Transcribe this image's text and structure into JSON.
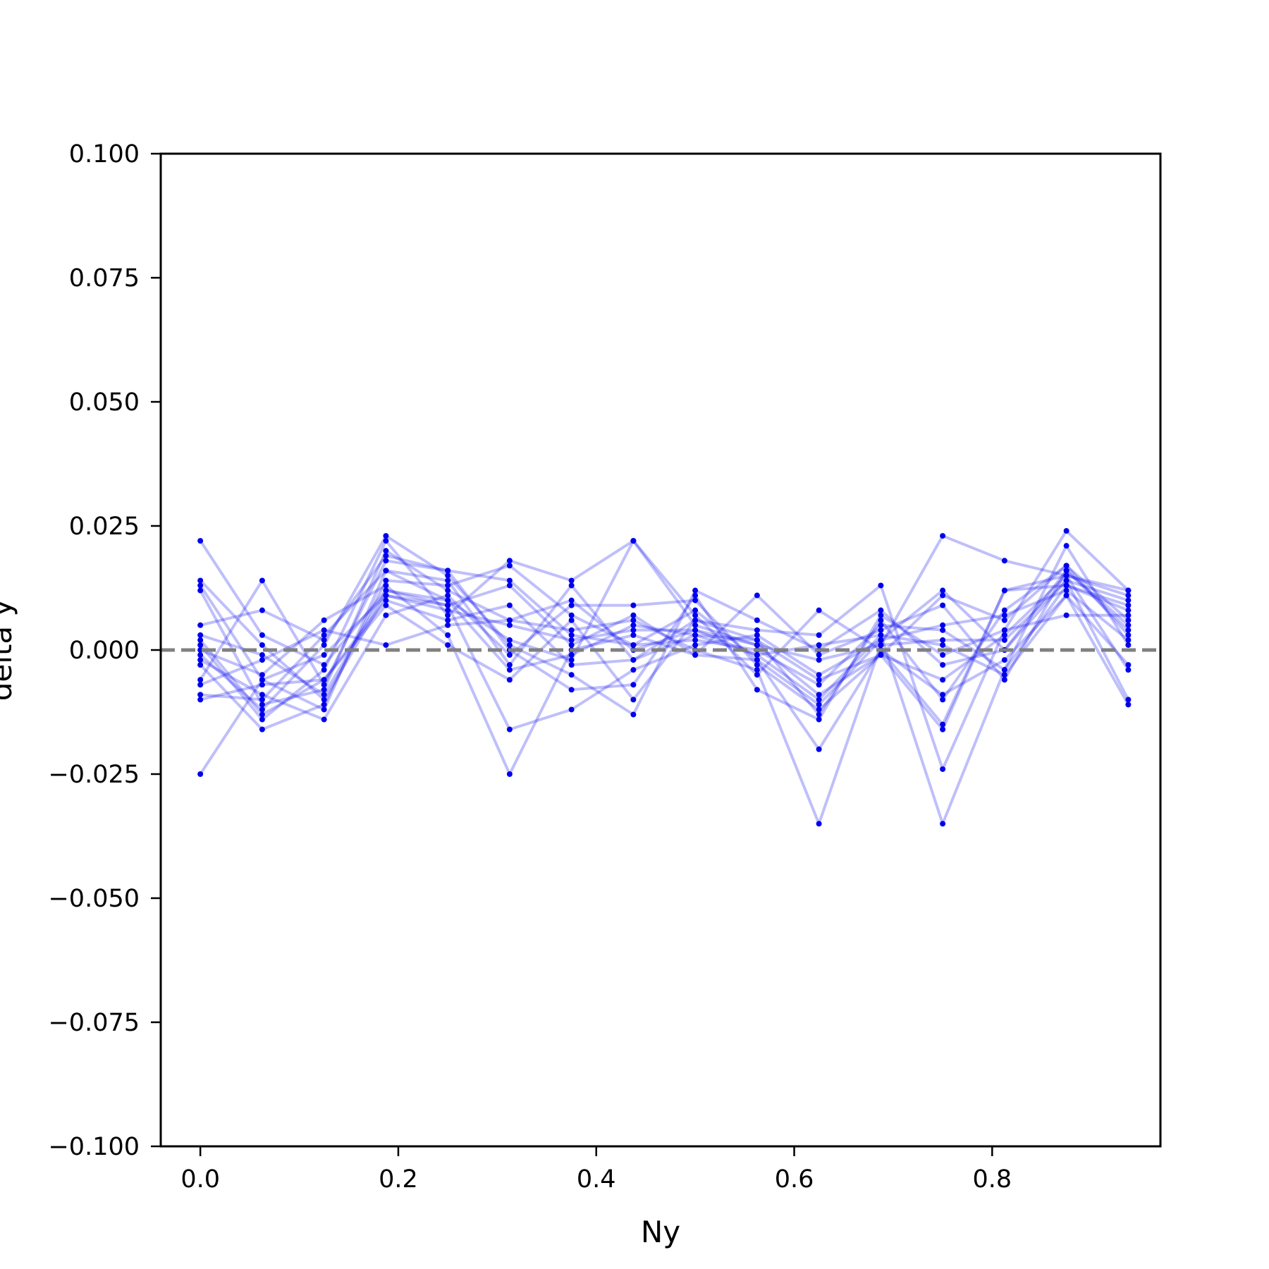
{
  "chart_data": {
    "type": "line",
    "title": "",
    "xlabel": "Ny",
    "ylabel": "delta y",
    "xlim": [
      -0.04,
      0.97
    ],
    "ylim": [
      -0.1,
      0.1
    ],
    "xticks": [
      0.0,
      0.2,
      0.4,
      0.6,
      0.8
    ],
    "xtick_labels": [
      "0.0",
      "0.2",
      "0.4",
      "0.6",
      "0.8"
    ],
    "yticks": [
      0.1,
      0.075,
      0.05,
      0.025,
      0.0,
      -0.025,
      -0.05,
      -0.075,
      -0.1
    ],
    "ytick_labels": [
      "0.100",
      "0.075",
      "0.050",
      "0.025",
      "0.000",
      "−0.025",
      "−0.050",
      "−0.075",
      "−0.100"
    ],
    "grid": false,
    "reference_line": {
      "y": 0.0,
      "style": "dashed",
      "color": "#808080"
    },
    "series_color": "#0000ee",
    "x": [
      0.0,
      0.0625,
      0.125,
      0.1875,
      0.25,
      0.3125,
      0.375,
      0.4375,
      0.5,
      0.5625,
      0.625,
      0.6875,
      0.75,
      0.8125,
      0.875,
      0.9375
    ],
    "series": [
      {
        "values": [
          0.022,
          0.003,
          -0.003,
          0.012,
          0.01,
          0.002,
          -0.002,
          0.022,
          0.005,
          0.001,
          -0.002,
          0.001,
          0.023,
          0.018,
          0.015,
          0.011
        ]
      },
      {
        "values": [
          0.014,
          0.001,
          -0.01,
          0.011,
          0.008,
          0.005,
          0.002,
          0.004,
          0.004,
          -0.001,
          -0.01,
          0.003,
          -0.035,
          -0.004,
          0.013,
          0.008
        ]
      },
      {
        "values": [
          0.013,
          -0.006,
          -0.012,
          0.016,
          0.014,
          -0.003,
          0.013,
          -0.002,
          0.003,
          0.002,
          -0.013,
          0.006,
          -0.01,
          0.008,
          0.017,
          0.006
        ]
      },
      {
        "values": [
          0.012,
          -0.011,
          -0.008,
          0.02,
          0.012,
          0.006,
          0.004,
          0.006,
          0.0,
          -0.004,
          -0.035,
          0.001,
          0.002,
          0.002,
          0.014,
          0.01
        ]
      },
      {
        "values": [
          0.005,
          0.008,
          0.002,
          0.019,
          0.016,
          0.014,
          0.003,
          0.001,
          0.008,
          -0.002,
          -0.02,
          0.0,
          -0.015,
          0.012,
          0.013,
          0.009
        ]
      },
      {
        "values": [
          0.003,
          -0.001,
          -0.009,
          0.012,
          0.009,
          -0.016,
          -0.012,
          -0.004,
          0.001,
          0.003,
          -0.005,
          0.002,
          0.012,
          0.0,
          0.016,
          0.005
        ]
      },
      {
        "values": [
          0.002,
          -0.013,
          -0.006,
          0.01,
          0.006,
          0.009,
          -0.003,
          -0.002,
          0.006,
          0.004,
          0.003,
          0.013,
          -0.024,
          0.004,
          0.024,
          0.012
        ]
      },
      {
        "values": [
          0.001,
          -0.014,
          -0.004,
          0.022,
          0.007,
          0.018,
          0.014,
          0.022,
          0.007,
          -0.005,
          0.008,
          0.0,
          -0.009,
          -0.002,
          0.011,
          -0.003
        ]
      },
      {
        "values": [
          0.0,
          -0.005,
          0.006,
          0.013,
          0.003,
          -0.025,
          0.0,
          0.003,
          -0.001,
          0.011,
          -0.001,
          0.004,
          0.009,
          -0.006,
          0.016,
          0.004
        ]
      },
      {
        "values": [
          -0.001,
          -0.012,
          0.001,
          0.023,
          0.015,
          0.001,
          -0.005,
          -0.013,
          0.012,
          0.006,
          0.0,
          0.008,
          -0.003,
          0.0,
          0.014,
          -0.01
        ]
      },
      {
        "values": [
          -0.002,
          -0.009,
          -0.014,
          0.007,
          0.011,
          -0.001,
          0.009,
          0.009,
          0.01,
          -0.003,
          -0.012,
          -0.001,
          0.011,
          0.006,
          0.017,
          0.003
        ]
      },
      {
        "values": [
          -0.003,
          -0.016,
          -0.011,
          0.014,
          0.013,
          0.017,
          0.007,
          0.001,
          0.002,
          0.0,
          -0.007,
          0.005,
          0.004,
          -0.004,
          0.021,
          0.001
        ]
      },
      {
        "values": [
          -0.006,
          0.014,
          -0.007,
          0.018,
          0.016,
          0.0,
          -0.008,
          -0.007,
          0.011,
          -0.008,
          -0.014,
          0.007,
          -0.001,
          0.004,
          0.007,
          0.007
        ]
      },
      {
        "values": [
          -0.007,
          -0.002,
          0.004,
          0.001,
          0.005,
          0.006,
          0.01,
          0.0,
          0.004,
          0.001,
          -0.009,
          -0.001,
          -0.016,
          0.012,
          0.015,
          -0.004
        ]
      },
      {
        "values": [
          -0.009,
          -0.01,
          0.003,
          0.016,
          0.01,
          -0.004,
          -0.001,
          0.005,
          0.003,
          -0.001,
          0.001,
          0.003,
          0.001,
          -0.005,
          0.011,
          -0.011
        ]
      },
      {
        "values": [
          -0.01,
          -0.007,
          -0.006,
          0.009,
          0.001,
          -0.006,
          0.006,
          -0.01,
          0.006,
          0.002,
          -0.006,
          -0.001,
          -0.006,
          0.003,
          0.015,
          0.012
        ]
      },
      {
        "values": [
          -0.025,
          -0.006,
          -0.001,
          0.011,
          0.009,
          0.013,
          0.001,
          0.007,
          -0.001,
          -0.002,
          -0.011,
          0.002,
          0.005,
          0.007,
          0.012,
          0.002
        ]
      }
    ]
  }
}
